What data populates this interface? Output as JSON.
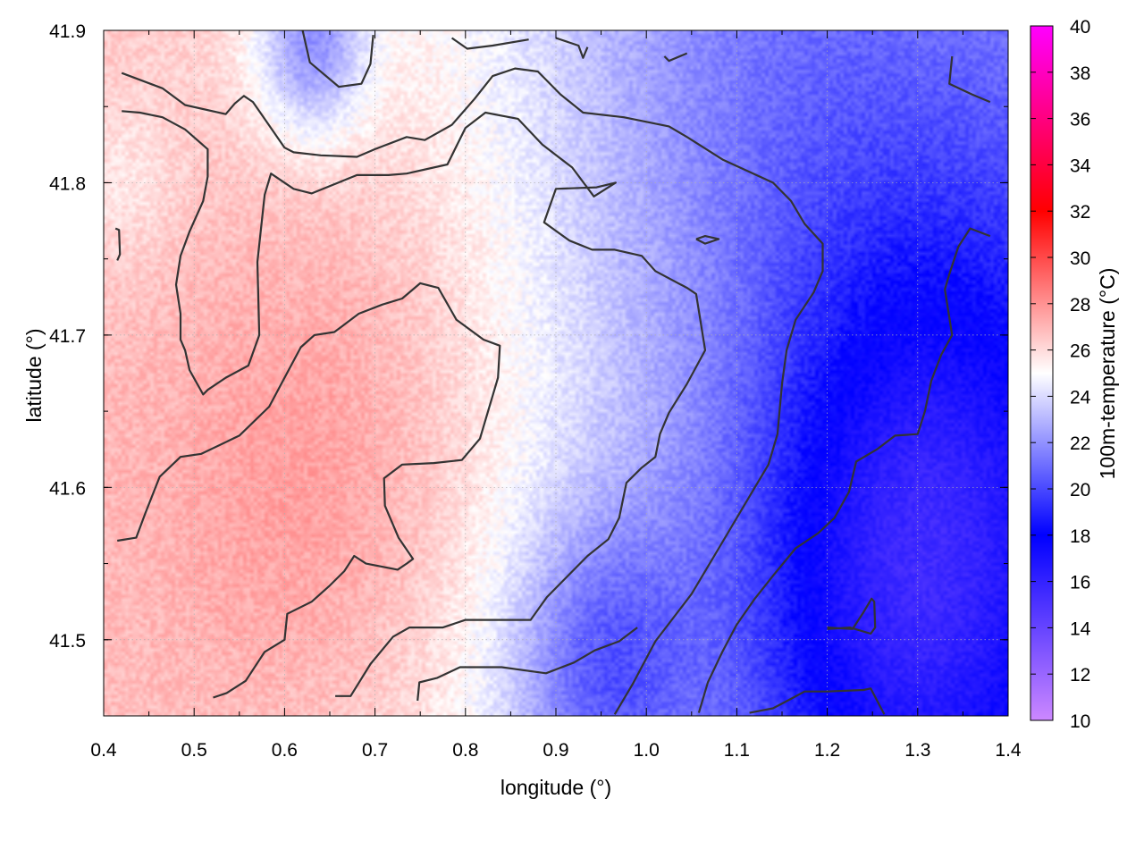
{
  "chart_data": {
    "type": "heatmap",
    "title": "",
    "xlabel": "longitude (°)",
    "ylabel": "latitude (°)",
    "colorbar_label": "100m-temperature (°C)",
    "xlim": [
      0.4,
      1.4
    ],
    "ylim": [
      41.45,
      41.9
    ],
    "xticks": [
      0.4,
      0.5,
      0.6,
      0.7,
      0.8,
      0.9,
      1.0,
      1.1,
      1.2,
      1.3,
      1.4
    ],
    "xtick_labels": [
      "0.4",
      "0.5",
      "0.6",
      "0.7",
      "0.8",
      "0.9",
      "1.0",
      "1.1",
      "1.2",
      "1.3",
      "1.4"
    ],
    "yticks": [
      41.5,
      41.6,
      41.7,
      41.8,
      41.9
    ],
    "ytick_labels": [
      "41.5",
      "41.6",
      "41.7",
      "41.8",
      "41.9"
    ],
    "colorbar_range": [
      10,
      40
    ],
    "colorbar_ticks": [
      10,
      12,
      14,
      16,
      18,
      20,
      22,
      24,
      26,
      28,
      30,
      32,
      34,
      36,
      38,
      40
    ],
    "colorbar_tick_labels": [
      "10",
      "12",
      "14",
      "16",
      "18",
      "20",
      "22",
      "24",
      "26",
      "28",
      "30",
      "32",
      "34",
      "36",
      "38",
      "40"
    ],
    "colormap_stops": [
      {
        "value": 10,
        "color": "#cc88ff"
      },
      {
        "value": 18,
        "color": "#0000ff"
      },
      {
        "value": 25,
        "color": "#ffffff"
      },
      {
        "value": 32,
        "color": "#ff0000"
      },
      {
        "value": 40,
        "color": "#ff00ff"
      }
    ],
    "field_hotspots": [
      {
        "lon": 0.64,
        "lat": 41.58,
        "temp": 27.2,
        "spread": 0.2
      },
      {
        "lon": 0.72,
        "lat": 41.74,
        "temp": 25.8,
        "spread": 0.2
      },
      {
        "lon": 0.42,
        "lat": 41.8,
        "temp": 25.5,
        "spread": 0.06
      },
      {
        "lon": 1.28,
        "lat": 41.5,
        "temp": 17.5,
        "spread": 0.2
      },
      {
        "lon": 1.33,
        "lat": 41.65,
        "temp": 19.5,
        "spread": 0.2
      },
      {
        "lon": 1.12,
        "lat": 41.88,
        "temp": 21.5,
        "spread": 0.22
      },
      {
        "lon": 0.63,
        "lat": 41.89,
        "temp": 21.5,
        "spread": 0.06
      },
      {
        "lon": 0.95,
        "lat": 41.48,
        "temp": 20.5,
        "spread": 0.1
      }
    ],
    "field_gradient": {
      "base": 24.5,
      "per_degree_lon": -4.5,
      "ref_lon": 0.85
    },
    "contour_color": "#333333",
    "contours": [
      [
        [
          0.42,
          41.872
        ],
        [
          0.465,
          41.862
        ],
        [
          0.49,
          41.851
        ],
        [
          0.535,
          41.845
        ],
        [
          0.545,
          41.852
        ],
        [
          0.555,
          41.857
        ],
        [
          0.565,
          41.853
        ],
        [
          0.6,
          41.823
        ],
        [
          0.61,
          41.82
        ],
        [
          0.64,
          41.818
        ],
        [
          0.68,
          41.817
        ],
        [
          0.7,
          41.822
        ],
        [
          0.735,
          41.83
        ],
        [
          0.755,
          41.828
        ],
        [
          0.785,
          41.838
        ],
        [
          0.81,
          41.855
        ],
        [
          0.83,
          41.87
        ],
        [
          0.855,
          41.875
        ],
        [
          0.88,
          41.873
        ],
        [
          0.905,
          41.858
        ],
        [
          0.93,
          41.846
        ],
        [
          0.975,
          41.843
        ],
        [
          1.0,
          41.84
        ],
        [
          1.025,
          41.837
        ],
        [
          1.045,
          41.83
        ],
        [
          1.085,
          41.815
        ],
        [
          1.14,
          41.8
        ],
        [
          1.16,
          41.788
        ],
        [
          1.175,
          41.773
        ],
        [
          1.195,
          41.76
        ],
        [
          1.195,
          41.742
        ],
        [
          1.185,
          41.728
        ],
        [
          1.165,
          41.71
        ],
        [
          1.155,
          41.69
        ],
        [
          1.15,
          41.668
        ],
        [
          1.145,
          41.635
        ],
        [
          1.135,
          41.615
        ],
        [
          1.12,
          41.6
        ],
        [
          1.08,
          41.56
        ],
        [
          1.05,
          41.53
        ],
        [
          1.01,
          41.499
        ],
        [
          0.985,
          41.471
        ],
        [
          0.965,
          41.451
        ]
      ],
      [
        [
          0.42,
          41.847
        ],
        [
          0.44,
          41.846
        ],
        [
          0.465,
          41.843
        ],
        [
          0.49,
          41.835
        ],
        [
          0.515,
          41.822
        ],
        [
          0.515,
          41.804
        ],
        [
          0.51,
          41.788
        ],
        [
          0.495,
          41.768
        ],
        [
          0.485,
          41.752
        ],
        [
          0.48,
          41.733
        ],
        [
          0.485,
          41.714
        ],
        [
          0.485,
          41.697
        ],
        [
          0.49,
          41.69
        ],
        [
          0.495,
          41.677
        ],
        [
          0.51,
          41.661
        ],
        [
          0.515,
          41.664
        ],
        [
          0.535,
          41.672
        ],
        [
          0.56,
          41.68
        ],
        [
          0.572,
          41.7
        ],
        [
          0.57,
          41.748
        ],
        [
          0.578,
          41.792
        ],
        [
          0.585,
          41.806
        ],
        [
          0.61,
          41.796
        ],
        [
          0.63,
          41.793
        ],
        [
          0.68,
          41.805
        ],
        [
          0.715,
          41.805
        ],
        [
          0.735,
          41.806
        ],
        [
          0.78,
          41.812
        ],
        [
          0.8,
          41.836
        ],
        [
          0.822,
          41.846
        ],
        [
          0.858,
          41.842
        ],
        [
          0.885,
          41.825
        ],
        [
          0.918,
          41.81
        ],
        [
          0.942,
          41.791
        ],
        [
          0.966,
          41.8
        ],
        [
          0.945,
          41.797
        ],
        [
          0.9,
          41.796
        ],
        [
          0.887,
          41.774
        ],
        [
          0.915,
          41.762
        ],
        [
          0.94,
          41.756
        ],
        [
          0.965,
          41.756
        ],
        [
          0.995,
          41.752
        ],
        [
          1.01,
          41.742
        ],
        [
          1.045,
          41.731
        ],
        [
          1.055,
          41.727
        ],
        [
          1.065,
          41.69
        ],
        [
          1.045,
          41.668
        ],
        [
          1.025,
          41.649
        ],
        [
          1.015,
          41.635
        ],
        [
          1.01,
          41.62
        ],
        [
          0.995,
          41.613
        ],
        [
          0.978,
          41.603
        ],
        [
          0.97,
          41.58
        ],
        [
          0.958,
          41.566
        ],
        [
          0.935,
          41.555
        ],
        [
          0.91,
          41.54
        ],
        [
          0.89,
          41.528
        ],
        [
          0.872,
          41.513
        ],
        [
          0.849,
          41.513
        ],
        [
          0.8,
          41.513
        ],
        [
          0.775,
          41.508
        ],
        [
          0.738,
          41.508
        ],
        [
          0.72,
          41.502
        ],
        [
          0.695,
          41.484
        ],
        [
          0.673,
          41.463
        ],
        [
          0.656,
          41.463
        ]
      ],
      [
        [
          0.415,
          41.565
        ],
        [
          0.436,
          41.567
        ],
        [
          0.446,
          41.583
        ],
        [
          0.462,
          41.607
        ],
        [
          0.485,
          41.62
        ],
        [
          0.508,
          41.622
        ],
        [
          0.55,
          41.634
        ],
        [
          0.583,
          41.653
        ],
        [
          0.6,
          41.672
        ],
        [
          0.618,
          41.692
        ],
        [
          0.633,
          41.7
        ],
        [
          0.655,
          41.702
        ],
        [
          0.682,
          41.714
        ],
        [
          0.708,
          41.72
        ],
        [
          0.73,
          41.724
        ],
        [
          0.75,
          41.734
        ],
        [
          0.77,
          41.731
        ],
        [
          0.79,
          41.71
        ],
        [
          0.82,
          41.697
        ],
        [
          0.838,
          41.693
        ],
        [
          0.836,
          41.672
        ],
        [
          0.826,
          41.652
        ],
        [
          0.816,
          41.632
        ],
        [
          0.796,
          41.618
        ],
        [
          0.765,
          41.616
        ],
        [
          0.73,
          41.615
        ],
        [
          0.71,
          41.606
        ],
        [
          0.711,
          41.588
        ],
        [
          0.726,
          41.567
        ],
        [
          0.742,
          41.553
        ],
        [
          0.735,
          41.55
        ],
        [
          0.725,
          41.546
        ],
        [
          0.69,
          41.55
        ],
        [
          0.677,
          41.555
        ],
        [
          0.666,
          41.545
        ],
        [
          0.649,
          41.535
        ],
        [
          0.63,
          41.525
        ],
        [
          0.603,
          41.517
        ],
        [
          0.6,
          41.5
        ],
        [
          0.578,
          41.492
        ],
        [
          0.557,
          41.473
        ],
        [
          0.536,
          41.465
        ],
        [
          0.521,
          41.462
        ]
      ],
      [
        [
          0.62,
          41.9
        ],
        [
          0.628,
          41.879
        ],
        [
          0.66,
          41.863
        ],
        [
          0.685,
          41.865
        ],
        [
          0.695,
          41.878
        ],
        [
          0.698,
          41.897
        ]
      ],
      [
        [
          0.785,
          41.895
        ],
        [
          0.802,
          41.888
        ],
        [
          0.83,
          41.89
        ],
        [
          0.87,
          41.894
        ]
      ],
      [
        [
          0.9,
          41.895
        ],
        [
          0.925,
          41.89
        ],
        [
          0.93,
          41.882
        ],
        [
          0.935,
          41.889
        ]
      ],
      [
        [
          1.02,
          41.883
        ],
        [
          1.025,
          41.88
        ],
        [
          1.045,
          41.885
        ]
      ],
      [
        [
          1.338,
          41.883
        ],
        [
          1.335,
          41.865
        ],
        [
          1.36,
          41.858
        ],
        [
          1.38,
          41.853
        ]
      ],
      [
        [
          0.413,
          41.77
        ],
        [
          0.417,
          41.769
        ],
        [
          0.418,
          41.753
        ],
        [
          0.415,
          41.749
        ]
      ],
      [
        [
          1.055,
          41.763
        ],
        [
          1.065,
          41.765
        ],
        [
          1.08,
          41.763
        ],
        [
          1.065,
          41.76
        ],
        [
          1.055,
          41.763
        ]
      ],
      [
        [
          1.38,
          41.765
        ],
        [
          1.358,
          41.77
        ],
        [
          1.345,
          41.758
        ],
        [
          1.335,
          41.74
        ],
        [
          1.33,
          41.73
        ],
        [
          1.338,
          41.7
        ],
        [
          1.326,
          41.687
        ],
        [
          1.315,
          41.67
        ],
        [
          1.308,
          41.65
        ],
        [
          1.3,
          41.635
        ],
        [
          1.275,
          41.634
        ],
        [
          1.255,
          41.625
        ],
        [
          1.232,
          41.617
        ],
        [
          1.224,
          41.597
        ],
        [
          1.208,
          41.58
        ],
        [
          1.19,
          41.57
        ],
        [
          1.165,
          41.56
        ],
        [
          1.14,
          41.542
        ],
        [
          1.12,
          41.527
        ],
        [
          1.1,
          41.51
        ],
        [
          1.084,
          41.492
        ],
        [
          1.068,
          41.472
        ],
        [
          1.058,
          41.452
        ]
      ],
      [
        [
          1.114,
          41.452
        ],
        [
          1.14,
          41.455
        ],
        [
          1.156,
          41.46
        ],
        [
          1.175,
          41.466
        ],
        [
          1.2,
          41.466
        ],
        [
          1.24,
          41.467
        ],
        [
          1.248,
          41.468
        ],
        [
          1.263,
          41.451
        ]
      ],
      [
        [
          1.2,
          41.507
        ],
        [
          1.225,
          41.508
        ],
        [
          1.248,
          41.504
        ],
        [
          1.253,
          41.508
        ],
        [
          1.252,
          41.525
        ],
        [
          1.249,
          41.527
        ],
        [
          1.24,
          41.518
        ],
        [
          1.228,
          41.507
        ],
        [
          1.2,
          41.508
        ]
      ],
      [
        [
          0.747,
          41.46
        ],
        [
          0.749,
          41.472
        ],
        [
          0.769,
          41.475
        ],
        [
          0.794,
          41.482
        ],
        [
          0.84,
          41.482
        ],
        [
          0.889,
          41.478
        ],
        [
          0.92,
          41.485
        ],
        [
          0.943,
          41.493
        ],
        [
          0.97,
          41.499
        ],
        [
          0.99,
          41.508
        ]
      ]
    ]
  }
}
